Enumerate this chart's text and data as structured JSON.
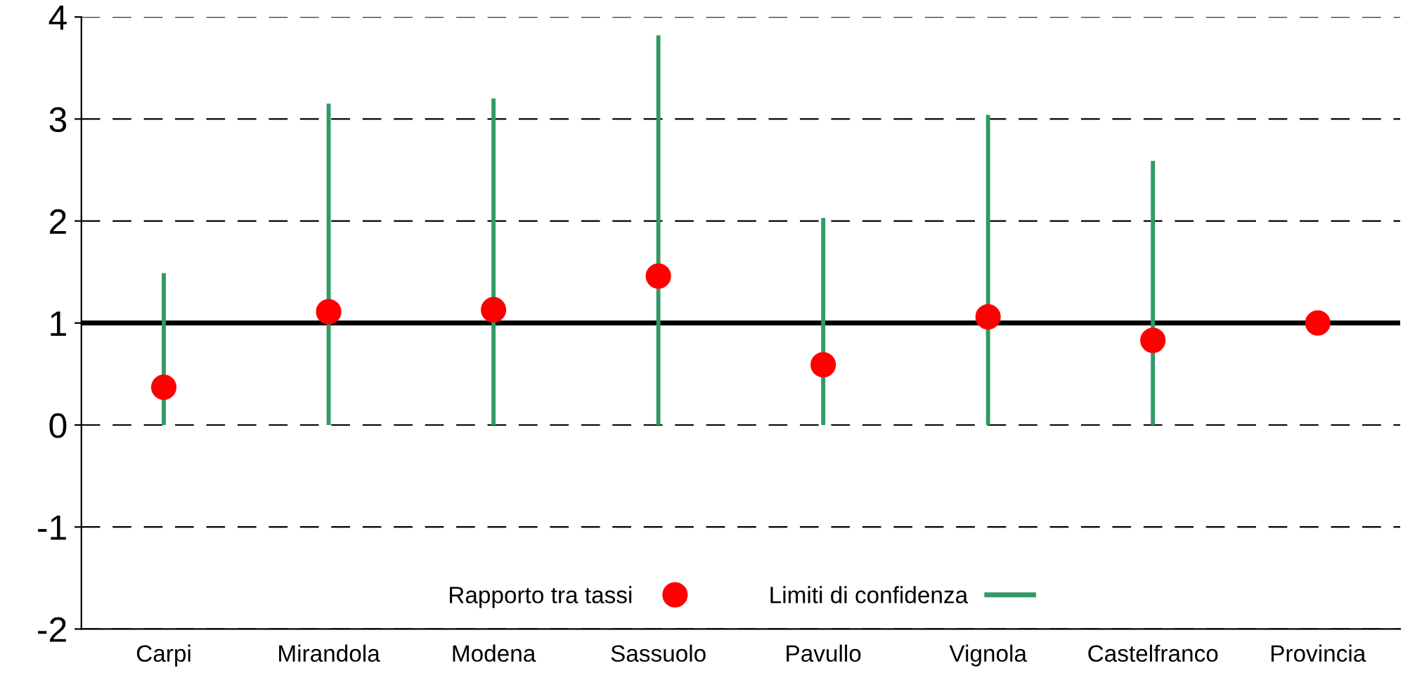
{
  "chart_data": {
    "type": "scatter",
    "categories": [
      "Carpi",
      "Mirandola",
      "Modena",
      "Sassuolo",
      "Pavullo",
      "Vignola",
      "Castelfranco",
      "Provincia"
    ],
    "series": [
      {
        "name": "Rapporto tra tassi",
        "color": "#ff0000",
        "values": [
          0.37,
          1.11,
          1.13,
          1.46,
          0.59,
          1.06,
          0.83,
          1.0
        ]
      },
      {
        "name": "Limiti di confidenza",
        "type": "bar",
        "color": "#339966",
        "base": [
          0,
          0,
          0,
          0,
          0,
          0,
          0,
          null
        ],
        "values": [
          1.49,
          3.15,
          3.2,
          3.82,
          2.03,
          3.04,
          2.59,
          null
        ]
      }
    ],
    "ylim": [
      -2,
      4
    ],
    "yticks": [
      -2,
      -1,
      0,
      1,
      2,
      3,
      4
    ],
    "grid": "y",
    "marker": "circle",
    "legend": "bottom",
    "ref_lines": [
      {
        "axis": "y",
        "value": 1,
        "color": "#000000",
        "line_style": "solid"
      }
    ]
  }
}
